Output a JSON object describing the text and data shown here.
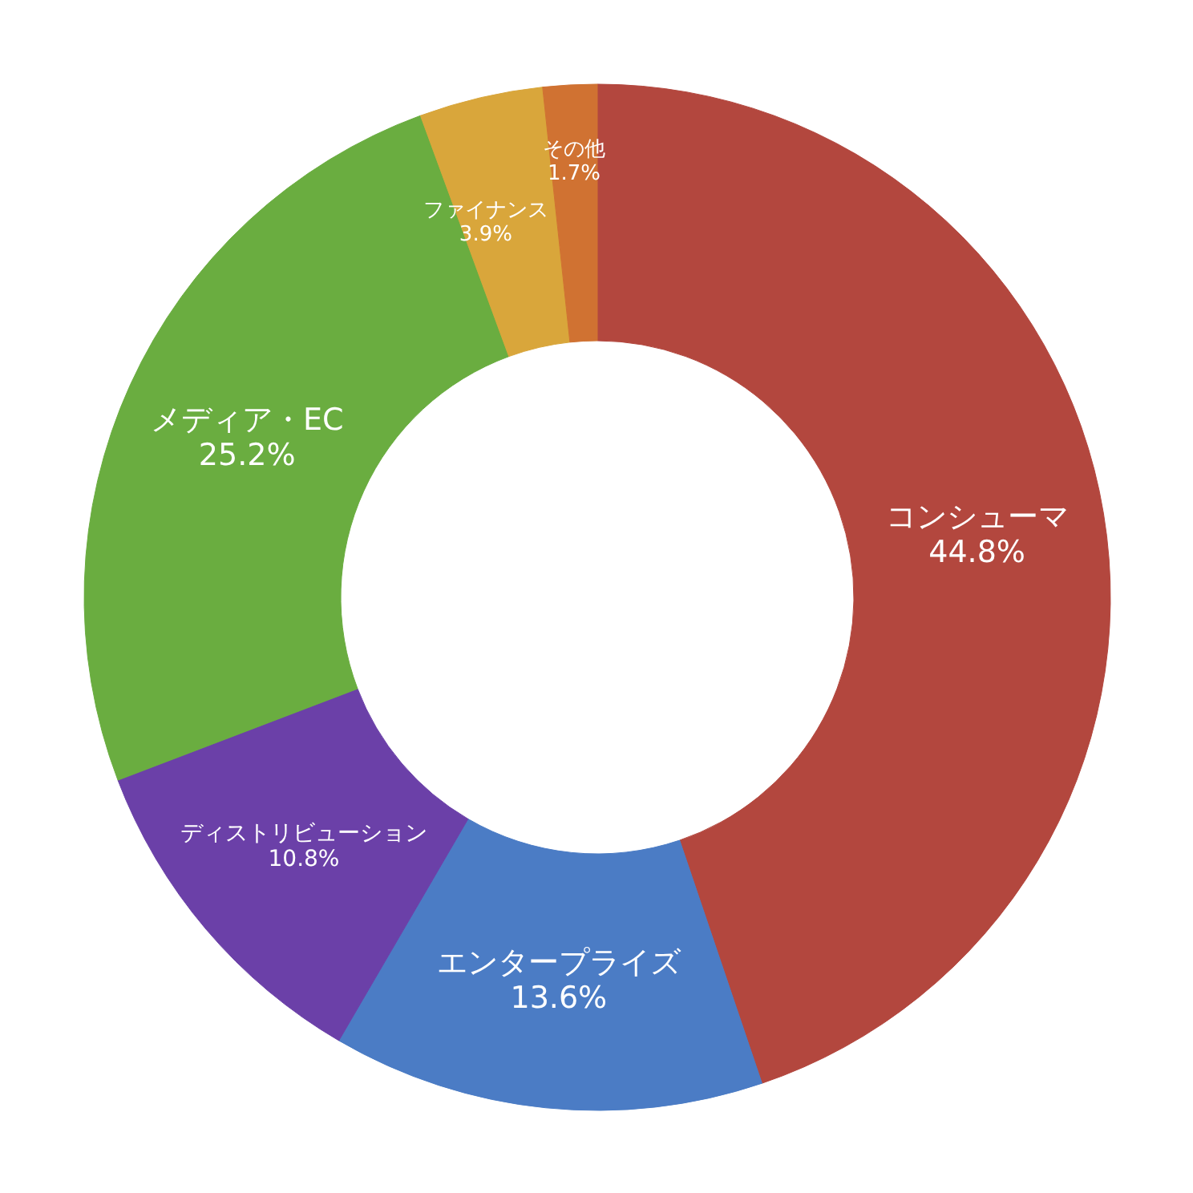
{
  "chart_data": {
    "type": "donut",
    "categories": [
      "コンシューマ",
      "エンタープライズ",
      "ディストリビューション",
      "メディア・EC",
      "ファイナンス",
      "その他"
    ],
    "values": [
      44.8,
      13.6,
      10.8,
      25.2,
      3.9,
      1.7
    ],
    "colors": [
      "#b3473e",
      "#4b7cc5",
      "#6b40a8",
      "#6aad40",
      "#d9a63b",
      "#d07232"
    ],
    "value_labels": [
      "44.8%",
      "13.6%",
      "10.8%",
      "25.2%",
      "3.9%",
      "1.7%"
    ]
  }
}
